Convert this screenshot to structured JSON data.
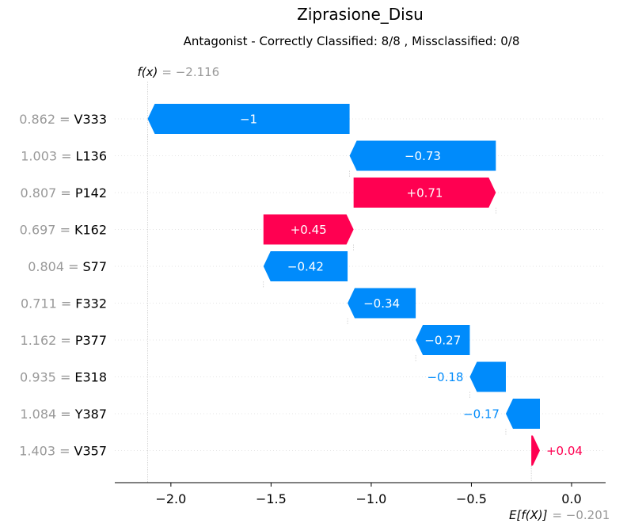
{
  "chart_data": {
    "type": "waterfall",
    "title": "Ziprasione_Disu",
    "subtitle": "Antagonist - Correctly Classified: 8/8 , Missclassified: 0/8",
    "fx_label": "f(x)",
    "fx_value": "= −2.116",
    "fx": -2.116,
    "base_label": "E[f(X)]",
    "base_value": "= −0.201",
    "base": -0.201,
    "xlim": [
      -2.28,
      0.17
    ],
    "xticks": [
      {
        "value": -2.0,
        "label": "−2.0"
      },
      {
        "value": -1.5,
        "label": "−1.5"
      },
      {
        "value": -1.0,
        "label": "−1.0"
      },
      {
        "value": -0.5,
        "label": "−0.5"
      },
      {
        "value": 0.0,
        "label": "0.0"
      }
    ],
    "features": [
      {
        "value_label": "0.862 =",
        "name": "V333",
        "start": -1.108,
        "end": -2.116,
        "label": "−1"
      },
      {
        "value_label": "1.003 =",
        "name": "L136",
        "start": -0.378,
        "end": -1.108,
        "label": "−0.73"
      },
      {
        "value_label": "0.807 =",
        "name": "P142",
        "start": -1.088,
        "end": -0.378,
        "label": "+0.71"
      },
      {
        "value_label": "0.697 =",
        "name": "K162",
        "start": -1.538,
        "end": -1.088,
        "label": "+0.45"
      },
      {
        "value_label": "0.804 =",
        "name": "S77",
        "start": -1.118,
        "end": -1.538,
        "label": "−0.42"
      },
      {
        "value_label": "0.711 =",
        "name": "F332",
        "start": -0.778,
        "end": -1.118,
        "label": "−0.34"
      },
      {
        "value_label": "1.162 =",
        "name": "P377",
        "start": -0.508,
        "end": -0.778,
        "label": "−0.27"
      },
      {
        "value_label": "0.935 =",
        "name": "E318",
        "start": -0.328,
        "end": -0.508,
        "label": "−0.18"
      },
      {
        "value_label": "1.084 =",
        "name": "Y387",
        "start": -0.158,
        "end": -0.328,
        "label": "−0.17"
      },
      {
        "value_label": "1.403 =",
        "name": "V357",
        "start": -0.201,
        "end": -0.158,
        "label": "+0.04"
      }
    ],
    "colors": {
      "positive": "#ff0051",
      "negative": "#008bfb"
    }
  }
}
